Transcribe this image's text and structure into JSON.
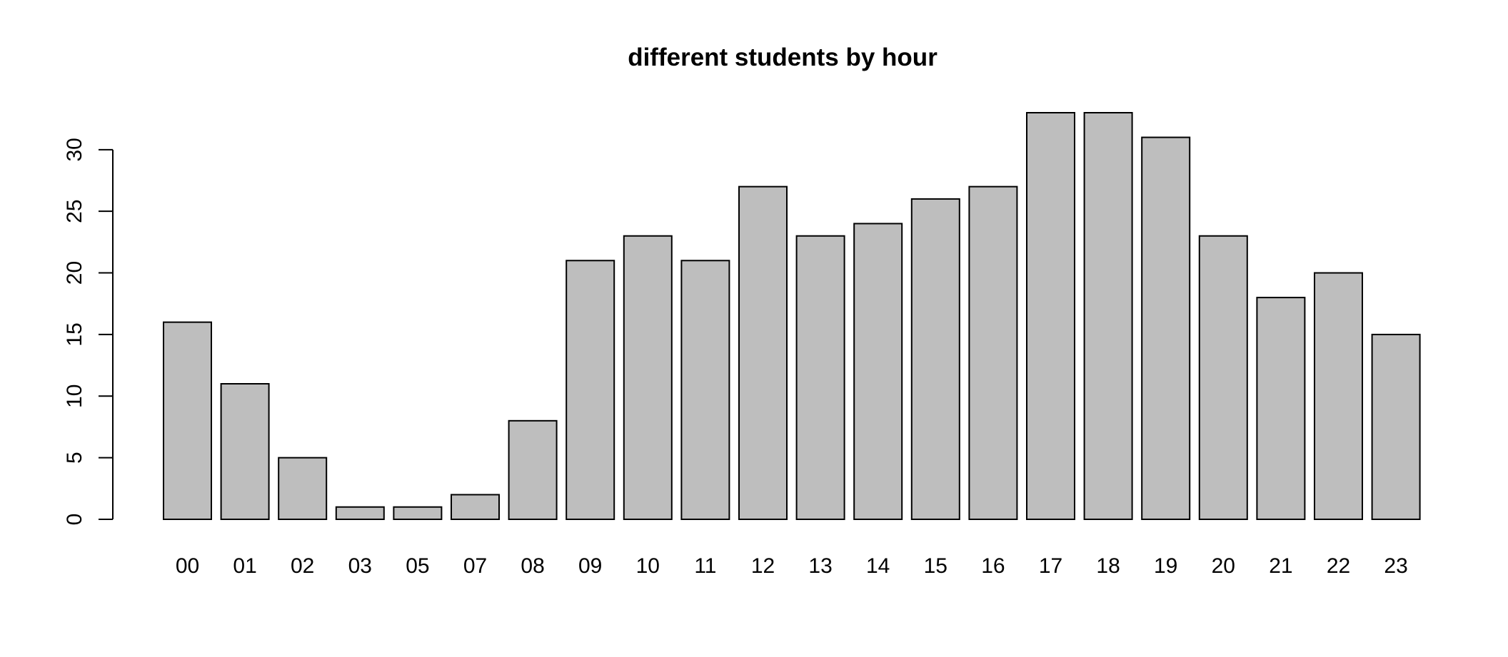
{
  "chart_data": {
    "type": "bar",
    "title": "different students by hour",
    "xlabel": "",
    "ylabel": "",
    "categories": [
      "00",
      "01",
      "02",
      "03",
      "05",
      "07",
      "08",
      "09",
      "10",
      "11",
      "12",
      "13",
      "14",
      "15",
      "16",
      "17",
      "18",
      "19",
      "20",
      "21",
      "22",
      "23"
    ],
    "values": [
      16,
      11,
      5,
      1,
      1,
      2,
      8,
      21,
      23,
      21,
      27,
      23,
      24,
      26,
      27,
      33,
      33,
      31,
      23,
      18,
      20,
      15
    ],
    "yticks": [
      0,
      5,
      10,
      15,
      20,
      25,
      30
    ],
    "ylim": [
      0,
      33
    ],
    "bar_color": "#bebebe",
    "grid": false,
    "legend": "none"
  }
}
